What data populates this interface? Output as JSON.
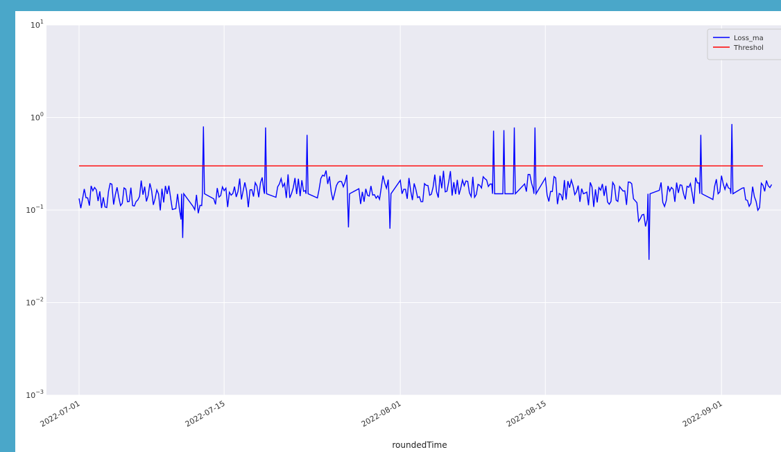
{
  "chart_data": {
    "type": "line",
    "xlabel": "roundedTime",
    "ylabel": "",
    "yscale": "log",
    "ylim": [
      0.001,
      10
    ],
    "x_range": [
      "2022-07-01",
      "2022-09-05"
    ],
    "x_ticks": [
      "2022-07-01",
      "2022-07-15",
      "2022-08-01",
      "2022-08-15",
      "2022-09-01"
    ],
    "y_ticks": [
      {
        "value": 10,
        "base": "10",
        "exp": "1"
      },
      {
        "value": 1,
        "base": "10",
        "exp": "0"
      },
      {
        "value": 0.1,
        "base": "10",
        "exp": "−1"
      },
      {
        "value": 0.01,
        "base": "10",
        "exp": "−2"
      },
      {
        "value": 0.001,
        "base": "10",
        "exp": "−3"
      }
    ],
    "grid": true,
    "legend_placement": "top-right",
    "series": [
      {
        "name": "Loss_ma",
        "color": "#0000ff",
        "points": [
          [
            "2022-07-01",
            0.12
          ],
          [
            "2022-07-02",
            0.14
          ],
          [
            "2022-07-03",
            0.13
          ],
          [
            "2022-07-04",
            0.15
          ],
          [
            "2022-07-05",
            0.13
          ],
          [
            "2022-07-06",
            0.14
          ],
          [
            "2022-07-07",
            0.15
          ],
          [
            "2022-07-08",
            0.13
          ],
          [
            "2022-07-09",
            0.16
          ],
          [
            "2022-07-10",
            0.11
          ],
          [
            "2022-07-11",
            0.05
          ],
          [
            "2022-07-12",
            0.13
          ],
          [
            "2022-07-13",
            0.8
          ],
          [
            "2022-07-14",
            0.14
          ],
          [
            "2022-07-15",
            0.15
          ],
          [
            "2022-07-16",
            0.16
          ],
          [
            "2022-07-17",
            0.15
          ],
          [
            "2022-07-18",
            0.16
          ],
          [
            "2022-07-19",
            0.78
          ],
          [
            "2022-07-20",
            0.17
          ],
          [
            "2022-07-21",
            0.18
          ],
          [
            "2022-07-22",
            0.17
          ],
          [
            "2022-07-23",
            0.65
          ],
          [
            "2022-07-24",
            0.19
          ],
          [
            "2022-07-25",
            0.18
          ],
          [
            "2022-07-26",
            0.18
          ],
          [
            "2022-07-27",
            0.065
          ],
          [
            "2022-07-28",
            0.15
          ],
          [
            "2022-07-29",
            0.16
          ],
          [
            "2022-07-30",
            0.17
          ],
          [
            "2022-07-31",
            0.063
          ],
          [
            "2022-08-01",
            0.17
          ],
          [
            "2022-08-02",
            0.18
          ],
          [
            "2022-08-03",
            0.16
          ],
          [
            "2022-08-04",
            0.18
          ],
          [
            "2022-08-05",
            0.19
          ],
          [
            "2022-08-06",
            0.17
          ],
          [
            "2022-08-07",
            0.18
          ],
          [
            "2022-08-08",
            0.19
          ],
          [
            "2022-08-09",
            0.2
          ],
          [
            "2022-08-10",
            0.72
          ],
          [
            "2022-08-11",
            0.73
          ],
          [
            "2022-08-12",
            0.78
          ],
          [
            "2022-08-13",
            0.18
          ],
          [
            "2022-08-14",
            0.78
          ],
          [
            "2022-08-15",
            0.17
          ],
          [
            "2022-08-16",
            0.16
          ],
          [
            "2022-08-17",
            0.15
          ],
          [
            "2022-08-18",
            0.14
          ],
          [
            "2022-08-19",
            0.15
          ],
          [
            "2022-08-20",
            0.14
          ],
          [
            "2022-08-21",
            0.15
          ],
          [
            "2022-08-22",
            0.14
          ],
          [
            "2022-08-23",
            0.16
          ],
          [
            "2022-08-24",
            0.09
          ],
          [
            "2022-08-25",
            0.029
          ],
          [
            "2022-08-26",
            0.15
          ],
          [
            "2022-08-27",
            0.16
          ],
          [
            "2022-08-28",
            0.17
          ],
          [
            "2022-08-29",
            0.16
          ],
          [
            "2022-08-30",
            0.65
          ],
          [
            "2022-08-31",
            0.16
          ],
          [
            "2022-09-01",
            0.17
          ],
          [
            "2022-09-02",
            0.85
          ],
          [
            "2022-09-03",
            0.15
          ],
          [
            "2022-09-04",
            0.14
          ],
          [
            "2022-09-05",
            0.15
          ]
        ]
      },
      {
        "name": "Threshol",
        "color": "#ff0000",
        "points": [
          [
            "2022-07-01",
            0.3
          ],
          [
            "2022-09-05",
            0.3
          ]
        ]
      }
    ]
  }
}
